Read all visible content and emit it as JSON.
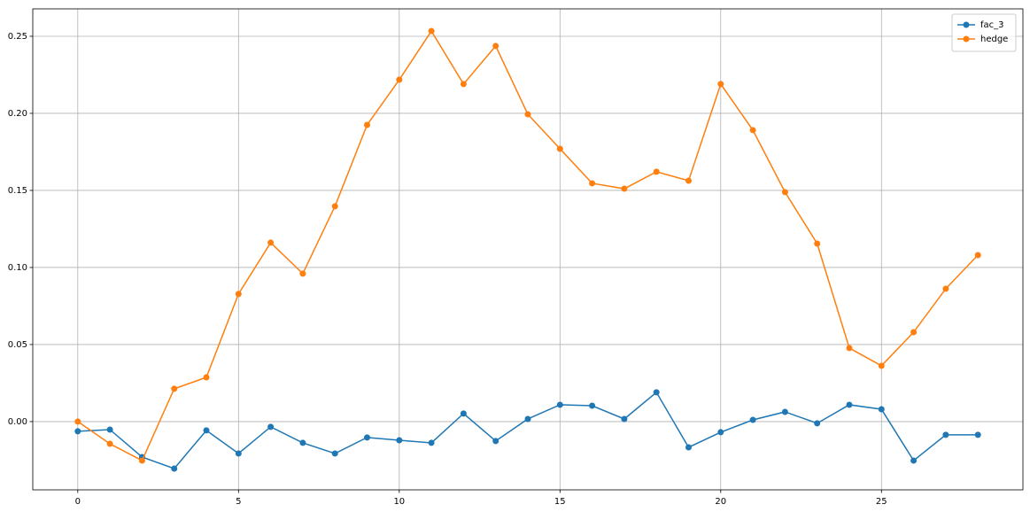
{
  "chart_data": {
    "type": "line",
    "x": [
      0,
      1,
      2,
      3,
      4,
      5,
      6,
      7,
      8,
      9,
      10,
      11,
      12,
      13,
      14,
      15,
      16,
      17,
      18,
      19,
      20,
      21,
      22,
      23,
      24,
      25,
      26,
      27,
      28
    ],
    "series": [
      {
        "name": "fac_3",
        "color": "#1f77b4",
        "values": [
          -0.0063,
          -0.0052,
          -0.023,
          -0.0305,
          -0.0057,
          -0.0207,
          -0.0034,
          -0.0138,
          -0.0207,
          -0.0103,
          -0.0121,
          -0.0138,
          0.0052,
          -0.0126,
          0.0017,
          0.0109,
          0.0103,
          0.0017,
          0.019,
          -0.0167,
          -0.0069,
          0.0011,
          0.0063,
          -0.0011,
          0.0109,
          0.008,
          -0.0253,
          -0.0086,
          -0.0086
        ]
      },
      {
        "name": "hedge",
        "color": "#ff7f0e",
        "values": [
          0,
          -0.0144,
          -0.0253,
          0.0213,
          0.0287,
          0.0828,
          0.1161,
          0.096,
          0.1397,
          0.1925,
          0.2218,
          0.2534,
          0.219,
          0.2437,
          0.1994,
          0.177,
          0.1546,
          0.1511,
          0.1621,
          0.1563,
          0.219,
          0.1891,
          0.1489,
          0.1155,
          0.0477,
          0.0362,
          0.058,
          0.0862,
          0.108
        ]
      }
    ],
    "xlim": [
      -1.4,
      29.4
    ],
    "xticks": [
      0,
      5,
      10,
      15,
      20,
      25
    ],
    "ylim": [
      -0.0443,
      0.2678
    ],
    "yticks": [
      {
        "value": 0,
        "label": "0.00"
      },
      {
        "value": 0.05,
        "label": "0.05"
      },
      {
        "value": 0.1,
        "label": "0.10"
      },
      {
        "value": 0.15,
        "label": "0.15"
      },
      {
        "value": 0.2,
        "label": "0.20"
      },
      {
        "value": 0.25,
        "label": "0.25"
      }
    ],
    "grid": true,
    "legend": "upper-right"
  }
}
